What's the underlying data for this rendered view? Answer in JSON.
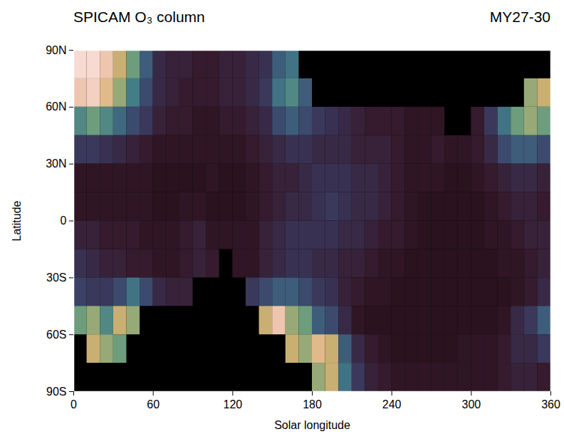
{
  "chart_data": {
    "type": "heatmap",
    "title": "SPICAM O₃ column",
    "subtitle": "MY27-30",
    "x_label": "Solar longitude",
    "y_label": "Latitude",
    "xlim": [
      0,
      360
    ],
    "xticks": [
      0,
      60,
      120,
      180,
      240,
      300,
      360
    ],
    "ylim": [
      -90,
      90
    ],
    "yticks": [
      {
        "value": -90,
        "label": "90S"
      },
      {
        "value": -60,
        "label": "60S"
      },
      {
        "value": -30,
        "label": "30S"
      },
      0,
      {
        "value": 30,
        "label": "30N"
      },
      {
        "value": 60,
        "label": "60N"
      },
      {
        "value": 90,
        "label": "90N"
      }
    ],
    "color_range": [
      0,
      30
    ],
    "x_edges": [
      0,
      10,
      20,
      30,
      40,
      50,
      60,
      70,
      80,
      90,
      100,
      110,
      120,
      130,
      140,
      150,
      160,
      170,
      180,
      190,
      200,
      210,
      220,
      230,
      240,
      250,
      260,
      270,
      280,
      290,
      300,
      310,
      320,
      330,
      340,
      350,
      360
    ],
    "y_edges": [
      90,
      75,
      60,
      45,
      30,
      15,
      0,
      -15,
      -30,
      -45,
      -60,
      -75,
      -90
    ],
    "values": [
      [
        28,
        28,
        26,
        22,
        18,
        12,
        6,
        5,
        5,
        4,
        4,
        5,
        5,
        6,
        7,
        12,
        14,
        null,
        null,
        null,
        null,
        null,
        null,
        null,
        null,
        null,
        null,
        null,
        null,
        null,
        null,
        null,
        null,
        null,
        null,
        null
      ],
      [
        26,
        27,
        24,
        20,
        15,
        10,
        6,
        5,
        4,
        4,
        4,
        5,
        5,
        6,
        8,
        14,
        16,
        12,
        null,
        null,
        null,
        null,
        null,
        null,
        null,
        null,
        null,
        null,
        null,
        null,
        null,
        null,
        null,
        null,
        20,
        22
      ],
      [
        16,
        18,
        16,
        13,
        10,
        8,
        5,
        4,
        4,
        3,
        3,
        4,
        4,
        5,
        6,
        10,
        12,
        10,
        8,
        7,
        6,
        5,
        4,
        4,
        4,
        3,
        3,
        3,
        null,
        null,
        4,
        8,
        14,
        18,
        20,
        18
      ],
      [
        8,
        8,
        7,
        6,
        5,
        4,
        3,
        3,
        3,
        3,
        3,
        3,
        3,
        4,
        5,
        6,
        7,
        7,
        6,
        6,
        6,
        5,
        5,
        5,
        4,
        3,
        3,
        4,
        3,
        3,
        4,
        6,
        10,
        12,
        12,
        10
      ],
      [
        3,
        3,
        3,
        3,
        3,
        3,
        2,
        2,
        2,
        2,
        3,
        2,
        2,
        3,
        4,
        5,
        5,
        6,
        7,
        7,
        7,
        6,
        6,
        5,
        4,
        3,
        3,
        3,
        2,
        2,
        3,
        4,
        5,
        6,
        6,
        5
      ],
      [
        3,
        3,
        3,
        3,
        3,
        3,
        2,
        2,
        3,
        3,
        2,
        2,
        2,
        3,
        4,
        5,
        6,
        6,
        7,
        8,
        7,
        6,
        6,
        5,
        4,
        3,
        2,
        2,
        2,
        2,
        2,
        3,
        4,
        5,
        5,
        4
      ],
      [
        5,
        5,
        4,
        4,
        4,
        3,
        3,
        3,
        4,
        5,
        3,
        3,
        3,
        3,
        5,
        6,
        7,
        7,
        7,
        7,
        6,
        6,
        5,
        4,
        4,
        3,
        2,
        2,
        2,
        2,
        2,
        3,
        3,
        4,
        5,
        5
      ],
      [
        7,
        6,
        5,
        5,
        4,
        4,
        3,
        3,
        4,
        5,
        4,
        null,
        3,
        3,
        5,
        6,
        7,
        7,
        6,
        6,
        5,
        5,
        4,
        3,
        3,
        2,
        2,
        2,
        2,
        2,
        2,
        2,
        3,
        3,
        4,
        5
      ],
      [
        9,
        8,
        8,
        10,
        14,
        10,
        6,
        5,
        5,
        null,
        null,
        null,
        null,
        8,
        10,
        12,
        12,
        10,
        8,
        7,
        5,
        4,
        3,
        3,
        2,
        2,
        2,
        2,
        2,
        2,
        2,
        2,
        2,
        3,
        4,
        6
      ],
      [
        18,
        20,
        16,
        22,
        20,
        null,
        null,
        null,
        null,
        null,
        null,
        null,
        null,
        null,
        22,
        26,
        20,
        18,
        12,
        10,
        6,
        3,
        2,
        2,
        2,
        2,
        2,
        2,
        2,
        2,
        2,
        2,
        3,
        6,
        8,
        12
      ],
      [
        null,
        22,
        20,
        18,
        null,
        null,
        null,
        null,
        null,
        null,
        null,
        null,
        null,
        null,
        null,
        null,
        22,
        20,
        24,
        22,
        12,
        6,
        4,
        3,
        2,
        2,
        2,
        2,
        2,
        3,
        3,
        3,
        4,
        6,
        6,
        8
      ],
      [
        null,
        null,
        null,
        null,
        null,
        null,
        null,
        null,
        null,
        null,
        null,
        null,
        null,
        null,
        null,
        null,
        null,
        null,
        20,
        22,
        14,
        8,
        5,
        4,
        3,
        3,
        3,
        3,
        3,
        3,
        3,
        3,
        4,
        5,
        5,
        4
      ]
    ]
  }
}
